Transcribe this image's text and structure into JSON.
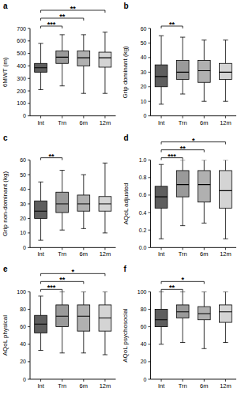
{
  "chart_data": [
    {
      "type": "box",
      "title": "a",
      "y_label": "6MWT (m)",
      "categories": [
        "Int",
        "Trn",
        "6m",
        "12m"
      ],
      "colors": [
        "#5e5e5e",
        "#9a9a9a",
        "#b0b0b0",
        "#d4d4d4"
      ],
      "boxes": [
        {
          "min": 210,
          "q1": 350,
          "median": 385,
          "q3": 420,
          "max": 580
        },
        {
          "min": 240,
          "q1": 420,
          "median": 470,
          "q3": 520,
          "max": 650
        },
        {
          "min": 180,
          "q1": 400,
          "median": 465,
          "q3": 520,
          "max": 650
        },
        {
          "min": 180,
          "q1": 390,
          "median": 465,
          "q3": 510,
          "max": 670
        }
      ],
      "ylim": [
        0,
        700
      ],
      "yticks": [
        0,
        100,
        200,
        300,
        400,
        500,
        600,
        700
      ],
      "significance": [
        {
          "from": "Int",
          "to": "Trn",
          "label": "***"
        },
        {
          "from": "Int",
          "to": "6m",
          "label": "**"
        },
        {
          "from": "Int",
          "to": "12m",
          "label": "**"
        }
      ]
    },
    {
      "type": "box",
      "title": "b",
      "y_label": "Grip dominant (kg)",
      "categories": [
        "Int",
        "Trn",
        "6m",
        "12m"
      ],
      "colors": [
        "#5e5e5e",
        "#9a9a9a",
        "#b0b0b0",
        "#d4d4d4"
      ],
      "boxes": [
        {
          "min": 8,
          "q1": 20,
          "median": 27,
          "q3": 35,
          "max": 55
        },
        {
          "min": 15,
          "q1": 25,
          "median": 30,
          "q3": 38,
          "max": 54
        },
        {
          "min": 10,
          "q1": 23,
          "median": 31,
          "q3": 38,
          "max": 52
        },
        {
          "min": 10,
          "q1": 25,
          "median": 30,
          "q3": 36,
          "max": 52
        }
      ],
      "ylim": [
        0,
        60
      ],
      "yticks": [
        0,
        10,
        20,
        30,
        40,
        50,
        60
      ],
      "significance": [
        {
          "from": "Int",
          "to": "Trn",
          "label": "**"
        }
      ]
    },
    {
      "type": "box",
      "title": "c",
      "y_label": "Grip non-dominant (kg)",
      "categories": [
        "Int",
        "Trn",
        "6m",
        "12m"
      ],
      "colors": [
        "#5e5e5e",
        "#9a9a9a",
        "#b0b0b0",
        "#d4d4d4"
      ],
      "boxes": [
        {
          "min": 5,
          "q1": 20,
          "median": 25,
          "q3": 32,
          "max": 45
        },
        {
          "min": 12,
          "q1": 24,
          "median": 30,
          "q3": 38,
          "max": 53
        },
        {
          "min": 13,
          "q1": 25,
          "median": 30,
          "q3": 36,
          "max": 50
        },
        {
          "min": 10,
          "q1": 25,
          "median": 30,
          "q3": 35,
          "max": 58
        }
      ],
      "ylim": [
        0,
        60
      ],
      "yticks": [
        0,
        10,
        20,
        30,
        40,
        50,
        60
      ],
      "significance": [
        {
          "from": "Int",
          "to": "Trn",
          "label": "**"
        }
      ]
    },
    {
      "type": "box",
      "title": "d",
      "y_label": "AQoL adjusted",
      "categories": [
        "Int",
        "Trn",
        "6m",
        "12m"
      ],
      "colors": [
        "#5e5e5e",
        "#9a9a9a",
        "#b0b0b0",
        "#d4d4d4"
      ],
      "boxes": [
        {
          "min": 0.1,
          "q1": 0.45,
          "median": 0.58,
          "q3": 0.7,
          "max": 0.95
        },
        {
          "min": 0.25,
          "q1": 0.58,
          "median": 0.72,
          "q3": 0.88,
          "max": 1.0
        },
        {
          "min": 0.28,
          "q1": 0.52,
          "median": 0.72,
          "q3": 0.88,
          "max": 1.0
        },
        {
          "min": 0.1,
          "q1": 0.45,
          "median": 0.65,
          "q3": 0.88,
          "max": 1.0
        }
      ],
      "ylim": [
        0,
        1
      ],
      "yticks": [
        {
          "value": 0,
          "label": "0.0"
        },
        {
          "value": 0.2,
          "label": "0.2"
        },
        {
          "value": 0.4,
          "label": "0.4"
        },
        {
          "value": 0.6,
          "label": "0.6"
        },
        {
          "value": 0.8,
          "label": "0.8"
        },
        {
          "value": 1,
          "label": "1.0"
        }
      ],
      "significance": [
        {
          "from": "Int",
          "to": "Trn",
          "label": "***"
        },
        {
          "from": "Int",
          "to": "6m",
          "label": "**"
        },
        {
          "from": "Int",
          "to": "12m",
          "label": "*"
        }
      ]
    },
    {
      "type": "box",
      "title": "e",
      "y_label": "AQoL physical",
      "categories": [
        "Int",
        "Trn",
        "6m",
        "12m"
      ],
      "colors": [
        "#5e5e5e",
        "#9a9a9a",
        "#b0b0b0",
        "#d4d4d4"
      ],
      "boxes": [
        {
          "min": 33,
          "q1": 53,
          "median": 63,
          "q3": 73,
          "max": 95
        },
        {
          "min": 30,
          "q1": 60,
          "median": 72,
          "q3": 85,
          "max": 100
        },
        {
          "min": 30,
          "q1": 55,
          "median": 72,
          "q3": 85,
          "max": 100
        },
        {
          "min": 28,
          "q1": 55,
          "median": 70,
          "q3": 85,
          "max": 100
        }
      ],
      "ylim": [
        0,
        100
      ],
      "yticks": [
        0,
        20,
        40,
        60,
        80,
        100
      ],
      "significance": [
        {
          "from": "Int",
          "to": "Trn",
          "label": "***"
        },
        {
          "from": "Int",
          "to": "6m",
          "label": "**"
        },
        {
          "from": "Int",
          "to": "12m",
          "label": "*"
        }
      ]
    },
    {
      "type": "box",
      "title": "f",
      "y_label": "AQoL psychosocial",
      "categories": [
        "Int",
        "Trn",
        "6m",
        "12m"
      ],
      "colors": [
        "#5e5e5e",
        "#9a9a9a",
        "#b0b0b0",
        "#d4d4d4"
      ],
      "boxes": [
        {
          "min": 40,
          "q1": 60,
          "median": 68,
          "q3": 80,
          "max": 100
        },
        {
          "min": 42,
          "q1": 70,
          "median": 77,
          "q3": 85,
          "max": 100
        },
        {
          "min": 35,
          "q1": 68,
          "median": 75,
          "q3": 83,
          "max": 100
        },
        {
          "min": 42,
          "q1": 65,
          "median": 77,
          "q3": 85,
          "max": 100
        }
      ],
      "ylim": [
        0,
        100
      ],
      "yticks": [
        0,
        20,
        40,
        60,
        80,
        100
      ],
      "significance": [
        {
          "from": "Int",
          "to": "Trn",
          "label": "**"
        },
        {
          "from": "Int",
          "to": "6m",
          "label": "*"
        }
      ]
    }
  ]
}
